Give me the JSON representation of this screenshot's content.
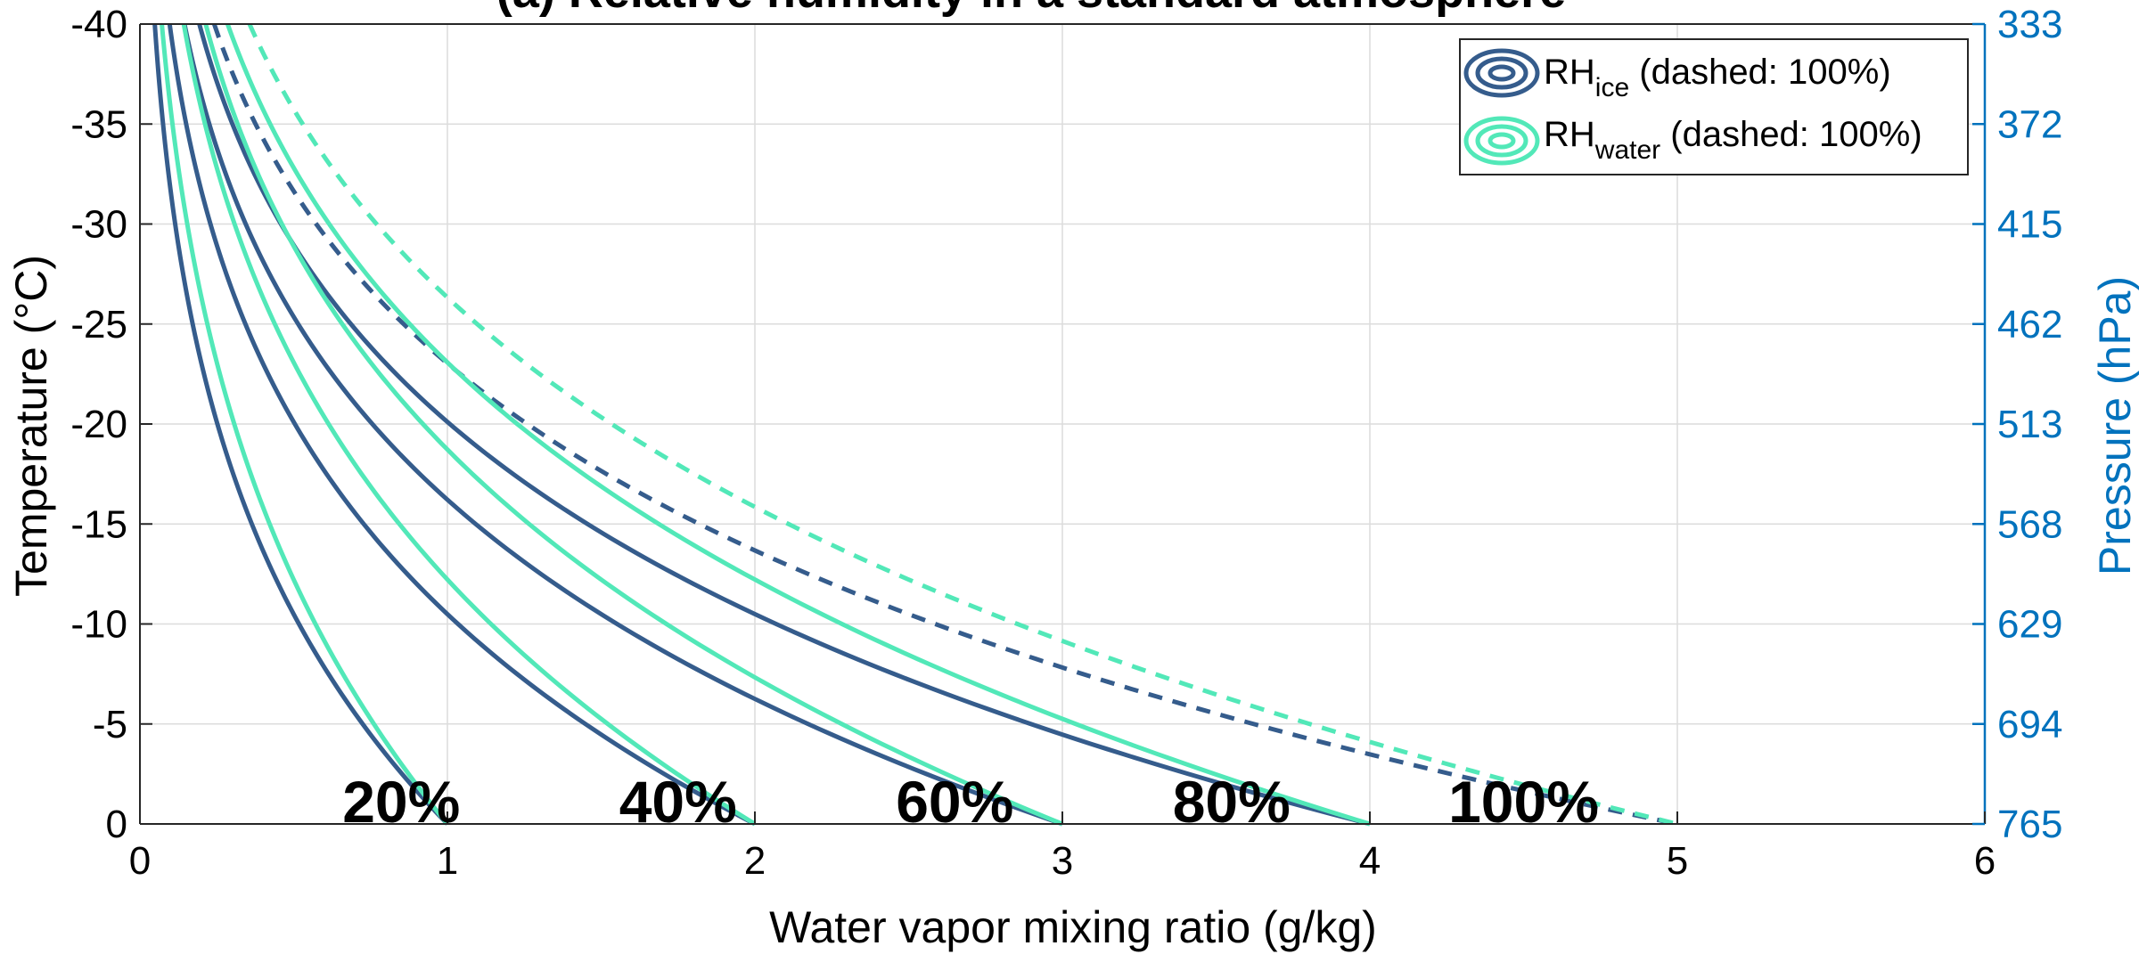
{
  "chart_data": {
    "type": "line",
    "title": "(a) Relative humidity in a standard atmosphere",
    "xlabel": "Water vapor mixing ratio (g/kg)",
    "ylabel": "Temperature (°C)",
    "ylabel_right": "Pressure (hPa)",
    "xlim": [
      0,
      6
    ],
    "ylim": [
      -40,
      0
    ],
    "y_reversed": true,
    "grid": true,
    "x_ticks": [
      "0",
      "1",
      "2",
      "3",
      "4",
      "5",
      "6"
    ],
    "y_ticks": [
      "-40",
      "-35",
      "-30",
      "-25",
      "-20",
      "-15",
      "-10",
      "-5",
      "0"
    ],
    "y_right_ticks": [
      "333",
      "372",
      "415",
      "462",
      "513",
      "568",
      "629",
      "694",
      "765"
    ],
    "legend_position": "top-right",
    "legend": [
      {
        "main": "RH",
        "sub": "ice",
        "suffix": " (dashed: 100%)",
        "color": "#355c8c"
      },
      {
        "main": "RH",
        "sub": "water",
        "suffix": " (dashed: 100%)",
        "color": "#52e8b8"
      }
    ],
    "annotations": [
      "20%",
      "40%",
      "60%",
      "80%",
      "100%"
    ],
    "colors": {
      "ice": "#355c8c",
      "water": "#52e8b8",
      "right_axis": "#0072bd"
    },
    "series": [
      {
        "name": "RH_ice 20%",
        "group": "ice",
        "dashed": false,
        "rh": 20
      },
      {
        "name": "RH_ice 40%",
        "group": "ice",
        "dashed": false,
        "rh": 40
      },
      {
        "name": "RH_ice 60%",
        "group": "ice",
        "dashed": false,
        "rh": 60
      },
      {
        "name": "RH_ice 80%",
        "group": "ice",
        "dashed": false,
        "rh": 80
      },
      {
        "name": "RH_ice 100%",
        "group": "ice",
        "dashed": true,
        "rh": 100
      },
      {
        "name": "RH_water 20%",
        "group": "water",
        "dashed": false,
        "rh": 20
      },
      {
        "name": "RH_water 40%",
        "group": "water",
        "dashed": false,
        "rh": 40
      },
      {
        "name": "RH_water 60%",
        "group": "water",
        "dashed": false,
        "rh": 60
      },
      {
        "name": "RH_water 80%",
        "group": "water",
        "dashed": false,
        "rh": 80
      },
      {
        "name": "RH_water 100%",
        "group": "water",
        "dashed": true,
        "rh": 100
      }
    ]
  }
}
